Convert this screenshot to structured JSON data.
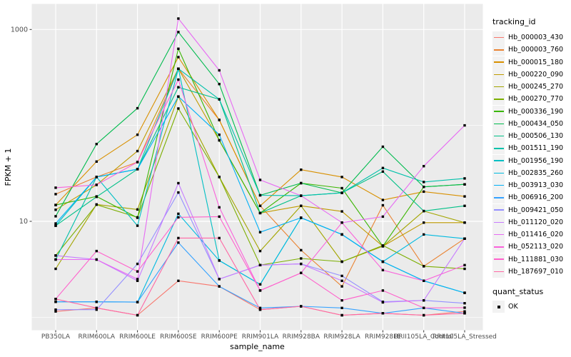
{
  "chart_data": {
    "type": "line",
    "xlabel": "sample_name",
    "ylabel": "FPKM + 1",
    "y_scale": "log10",
    "y_tick_labels": [
      "1000",
      "10"
    ],
    "y_tick_values": [
      1000,
      10
    ],
    "y_minor_gridline_values": [
      1,
      100
    ],
    "ylim": [
      1,
      1400
    ],
    "grid": true,
    "panel_bg": "#EBEBEB",
    "grid_color": "#FFFFFF",
    "tick_label_color": "#4D4D4D",
    "point_color": "#000000",
    "legend_position": "right",
    "categories": [
      "PB350LA",
      "RRIM600LA",
      "RRIM600LE",
      "RRIM600SE",
      "RRIM600PE",
      "RRIM901LA",
      "RRIM928BA",
      "RRIM928LA",
      "RRIM928LE",
      "RRII105LA_Control",
      "RRII105LA_Stressed"
    ],
    "legend": {
      "title": "tracking_id",
      "quant_status_title": "quant_status",
      "quant_status_entries": [
        "OK"
      ]
    },
    "series": [
      {
        "name": "Hb_000003_430",
        "color": "#F8766D",
        "values": [
          1.15,
          1.25,
          1.05,
          2.4,
          2.1,
          1.2,
          1.3,
          1.05,
          1.1,
          1.05,
          1.15
        ]
      },
      {
        "name": "Hb_000003_760",
        "color": "#EA8331",
        "values": [
          19.2,
          29,
          41.5,
          390,
          114,
          14.5,
          5.0,
          2.1,
          14.7,
          3.4,
          6.6
        ]
      },
      {
        "name": "Hb_000015_180",
        "color": "#D89000",
        "values": [
          14.8,
          42,
          80,
          515,
          114,
          14.5,
          34.5,
          29,
          16.7,
          20.4,
          18.2
        ]
      },
      {
        "name": "Hb_000220_090",
        "color": "#C09B00",
        "values": [
          13.2,
          24,
          54,
          390,
          70,
          12.2,
          14.5,
          12.7,
          5.5,
          9.7,
          9.7
        ]
      },
      {
        "name": "Hb_000245_270",
        "color": "#A3A500",
        "values": [
          3.2,
          15,
          13.3,
          200,
          29,
          4.9,
          14.5,
          3.8,
          5.5,
          12.8,
          9.7
        ]
      },
      {
        "name": "Hb_000270_770",
        "color": "#7CAE00",
        "values": [
          4.4,
          14.9,
          11,
          150,
          29,
          3.5,
          4.1,
          3.8,
          5.6,
          3.4,
          3.2
        ]
      },
      {
        "name": "Hb_000336_190",
        "color": "#39B600",
        "values": [
          14.8,
          18.2,
          10.9,
          630,
          70,
          12.2,
          25,
          22.2,
          5.5,
          22.9,
          24.3
        ]
      },
      {
        "name": "Hb_000434_050",
        "color": "#00BB4E",
        "values": [
          11.3,
          64,
          151,
          940,
          270,
          18.7,
          25,
          19.8,
          60,
          22.9,
          24.3
        ]
      },
      {
        "name": "Hb_000506_130",
        "color": "#00C087",
        "values": [
          9.0,
          18,
          35,
          250,
          187,
          12.2,
          18.5,
          19.8,
          33,
          12.8,
          14.5
        ]
      },
      {
        "name": "Hb_001511_190",
        "color": "#00C1AA",
        "values": [
          4.0,
          29,
          35,
          390,
          187,
          18.7,
          18.5,
          19.8,
          36,
          25.7,
          28
        ]
      },
      {
        "name": "Hb_001956_190",
        "color": "#00BFC4",
        "values": [
          9.0,
          29,
          9.0,
          390,
          3.9,
          2.2,
          10.9,
          7.3,
          3.8,
          2.4,
          1.8
        ]
      },
      {
        "name": "Hb_002835_260",
        "color": "#00BAE0",
        "values": [
          1.45,
          1.45,
          1.44,
          12,
          3.9,
          2.2,
          10.9,
          7.3,
          3.8,
          7.3,
          6.6
        ]
      },
      {
        "name": "Hb_003913_030",
        "color": "#00B0F6",
        "values": [
          9.5,
          29,
          35,
          200,
          80,
          7.7,
          10.9,
          7.3,
          3.8,
          2.4,
          1.8
        ]
      },
      {
        "name": "Hb_006916_200",
        "color": "#35A2FF",
        "values": [
          1.45,
          1.45,
          1.44,
          6,
          2.1,
          1.25,
          1.3,
          1.25,
          1.1,
          1.25,
          1.1
        ]
      },
      {
        "name": "Hb_009421_050",
        "color": "#9590FF",
        "values": [
          1.2,
          1.2,
          3.6,
          20,
          2.5,
          3.5,
          3.6,
          2.7,
          1.45,
          1.5,
          1.4
        ]
      },
      {
        "name": "Hb_011120_020",
        "color": "#C77CFF",
        "values": [
          4.4,
          4.0,
          2.4,
          25,
          2.5,
          3.5,
          3.6,
          2.4,
          1.43,
          1.5,
          6.6
        ]
      },
      {
        "name": "Hb_011416_020",
        "color": "#E76BF3",
        "values": [
          4.0,
          4.0,
          2.5,
          1300,
          375,
          27,
          18.5,
          9.7,
          11.2,
          37.6,
          100
        ]
      },
      {
        "name": "Hb_052113_020",
        "color": "#FA62DB",
        "values": [
          22.4,
          24,
          41.5,
          300,
          14,
          1.9,
          2.9,
          9.7,
          3.1,
          2.4,
          3.5
        ]
      },
      {
        "name": "Hb_111881_030",
        "color": "#FF61CC",
        "values": [
          1.55,
          4.9,
          3.0,
          11,
          11.2,
          1.9,
          2.9,
          1.5,
          1.9,
          1.25,
          1.26
        ]
      },
      {
        "name": "Hb_187697_010",
        "color": "#FF67A4",
        "values": [
          1.55,
          1.25,
          1.05,
          6.7,
          6.7,
          1.2,
          1.3,
          1.05,
          1.1,
          1.05,
          1.1
        ]
      }
    ]
  }
}
